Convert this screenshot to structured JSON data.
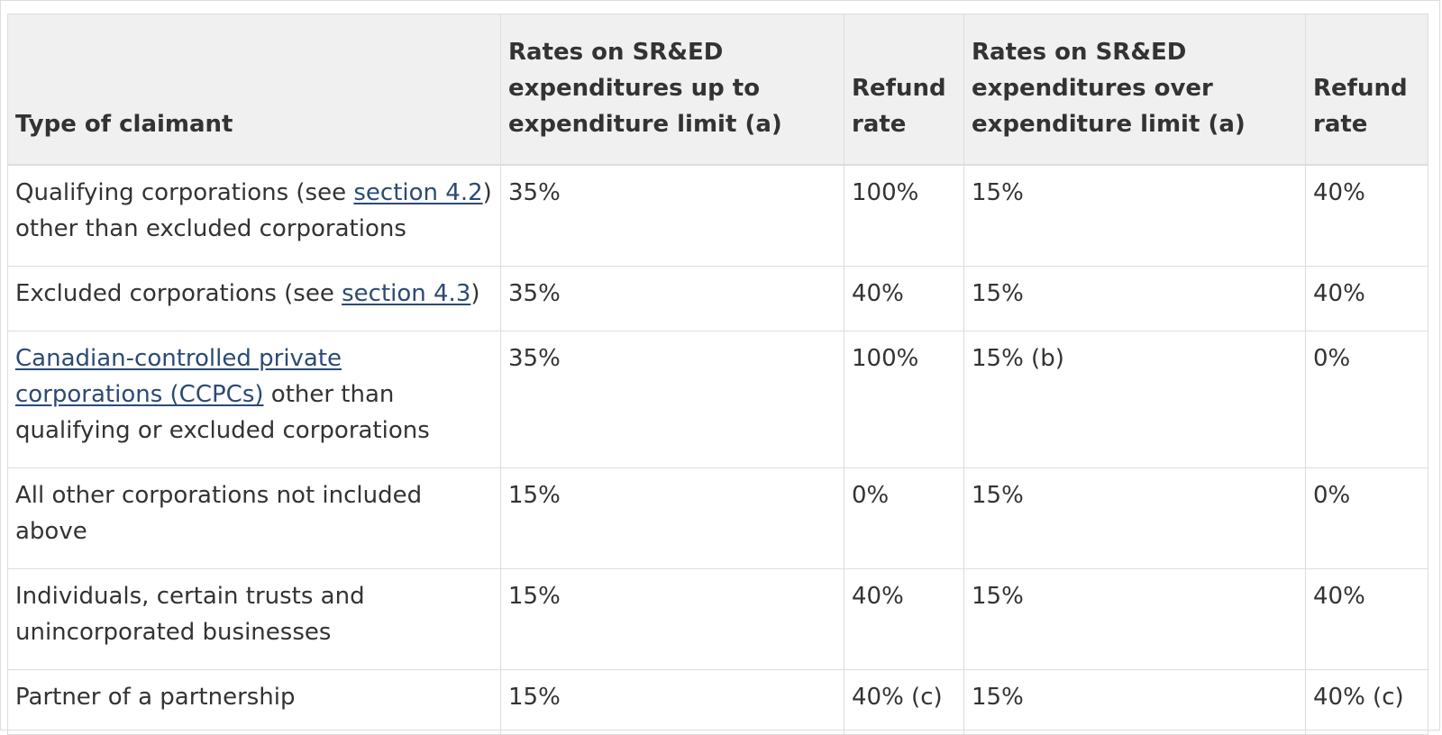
{
  "table": {
    "headers": {
      "type": "Type of claimant",
      "rate_up": "Rates on SR&ED expenditures up to expenditure limit (a)",
      "refund_up": "Refund rate",
      "rate_over": "Rates on SR&ED expenditures over expenditure limit (a)",
      "refund_over": "Refund rate"
    },
    "rows": [
      {
        "claimant_pre": "Qualifying corporations (see ",
        "claimant_link": "section 4.2",
        "claimant_post": ") other than excluded corporations",
        "rate_up": "35%",
        "refund_up": "100%",
        "rate_over": "15%",
        "refund_over": "40%"
      },
      {
        "claimant_pre": "Excluded corporations (see ",
        "claimant_link": "section 4.3",
        "claimant_post": ")",
        "rate_up": "35%",
        "refund_up": "40%",
        "rate_over": "15%",
        "refund_over": "40%"
      },
      {
        "claimant_link": "Canadian-controlled private corporations (CCPCs)",
        "claimant_post": " other than qualifying or excluded corporations",
        "rate_up": "35%",
        "refund_up": "100%",
        "rate_over": "15% (b)",
        "refund_over": "0%"
      },
      {
        "claimant": "All other corporations not included above",
        "rate_up": "15%",
        "refund_up": "0%",
        "rate_over": "15%",
        "refund_over": "0%"
      },
      {
        "claimant": "Individuals, certain trusts and unincorporated businesses",
        "rate_up": "15%",
        "refund_up": "40%",
        "rate_over": "15%",
        "refund_over": "40%"
      },
      {
        "claimant": "Partner of a partnership",
        "rate_up": "15%",
        "refund_up": "40% (c)",
        "rate_over": "15%",
        "refund_over": "40% (c)"
      }
    ]
  },
  "colors": {
    "header_bg": "#f0f0f0",
    "border": "#dddddd",
    "text": "#333333",
    "link": "#2b4a75"
  }
}
